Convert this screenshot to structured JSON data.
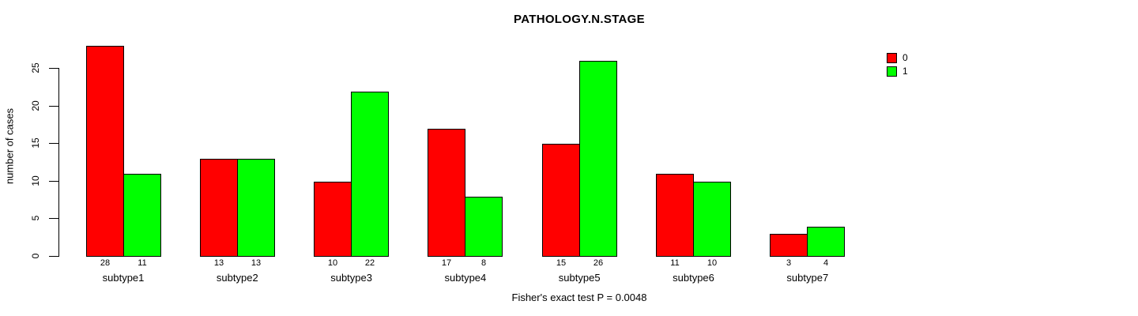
{
  "chart_data": {
    "type": "bar",
    "title": "PATHOLOGY.N.STAGE",
    "ylabel": "number of cases",
    "xlabel": "",
    "categories": [
      "subtype1",
      "subtype2",
      "subtype3",
      "subtype4",
      "subtype5",
      "subtype6",
      "subtype7"
    ],
    "series": [
      {
        "name": "0",
        "color": "#FF0000",
        "values": [
          28,
          13,
          10,
          17,
          15,
          11,
          3
        ]
      },
      {
        "name": "1",
        "color": "#00FF00",
        "values": [
          11,
          13,
          22,
          8,
          26,
          10,
          4
        ]
      }
    ],
    "bar_value_labels": true,
    "yticks": [
      0,
      5,
      10,
      15,
      20,
      25
    ],
    "ylim": [
      0,
      28
    ],
    "grid": false,
    "legend_position": "top-right",
    "annotation": "Fisher's exact test P = 0.0048"
  }
}
